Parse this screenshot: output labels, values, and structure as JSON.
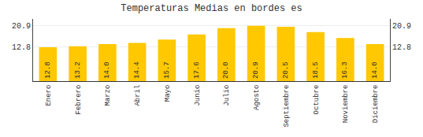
{
  "chart_data": {
    "type": "bar",
    "title": "Temperaturas Medias en bordes es",
    "categories": [
      "Enero",
      "Febrero",
      "Marzo",
      "Abril",
      "Mayo",
      "Junio",
      "Julio",
      "Agosto",
      "Septiembre",
      "Octubre",
      "Noviembre",
      "Diciembre"
    ],
    "values": [
      12.8,
      13.2,
      14.0,
      14.4,
      15.7,
      17.6,
      20.0,
      20.9,
      20.5,
      18.5,
      16.3,
      14.0
    ],
    "value_labels": [
      "12.8",
      "13.2",
      "14.0",
      "14.4",
      "15.7",
      "17.6",
      "20.0",
      "20.9",
      "20.5",
      "18.5",
      "16.3",
      "14.0"
    ],
    "color": "#FFC800",
    "ylim": [
      0.0,
      23.5
    ],
    "yticks": [
      12.8,
      20.9
    ],
    "y2lim": [
      0.0,
      23.5
    ],
    "y2ticks": [
      12.8,
      20.9
    ],
    "grid": true,
    "data_labels": true
  }
}
